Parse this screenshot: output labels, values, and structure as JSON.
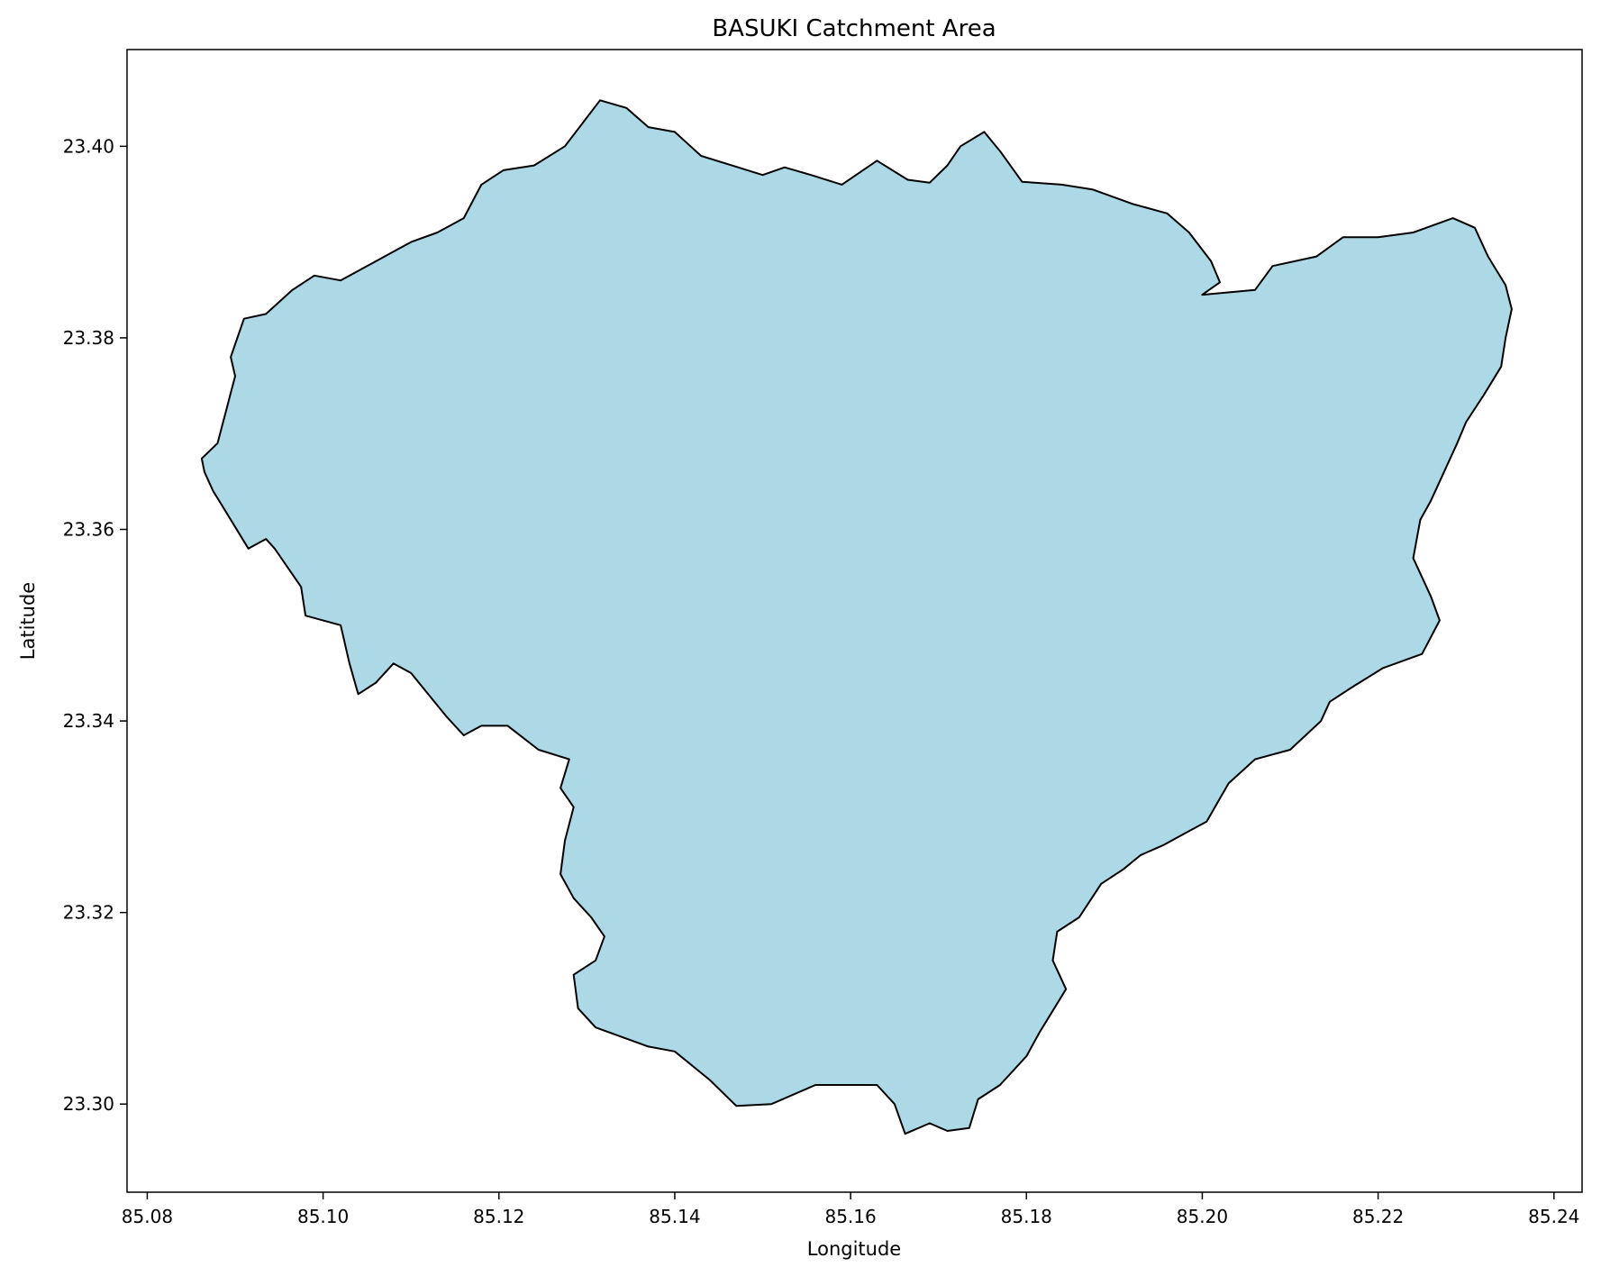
{
  "chart_data": {
    "type": "map",
    "title": "BASUKI Catchment Area",
    "xlabel": "Longitude",
    "ylabel": "Latitude",
    "xlim": [
      85.0777,
      85.2432
    ],
    "ylim": [
      23.2908,
      23.4101
    ],
    "x_ticks": [
      85.08,
      85.1,
      85.12,
      85.14,
      85.16,
      85.18,
      85.2,
      85.22,
      85.24
    ],
    "x_tick_labels": [
      "85.08",
      "85.10",
      "85.12",
      "85.14",
      "85.16",
      "85.18",
      "85.20",
      "85.22",
      "85.24"
    ],
    "y_ticks": [
      23.3,
      23.32,
      23.34,
      23.36,
      23.38,
      23.4
    ],
    "y_tick_labels": [
      "23.30",
      "23.32",
      "23.34",
      "23.36",
      "23.38",
      "23.40"
    ],
    "grid": false,
    "fill_color": "#add8e6",
    "edge_color": "#000000",
    "polygon": [
      [
        85.0862,
        23.3674
      ],
      [
        85.088,
        23.369
      ],
      [
        85.09,
        23.376
      ],
      [
        85.0895,
        23.378
      ],
      [
        85.091,
        23.382
      ],
      [
        85.0935,
        23.3825
      ],
      [
        85.0965,
        23.385
      ],
      [
        85.099,
        23.3865
      ],
      [
        85.102,
        23.386
      ],
      [
        85.105,
        23.3875
      ],
      [
        85.108,
        23.389
      ],
      [
        85.11,
        23.39
      ],
      [
        85.113,
        23.391
      ],
      [
        85.116,
        23.3925
      ],
      [
        85.118,
        23.396
      ],
      [
        85.1205,
        23.3975
      ],
      [
        85.124,
        23.398
      ],
      [
        85.1275,
        23.4
      ],
      [
        85.1315,
        23.4048
      ],
      [
        85.1345,
        23.404
      ],
      [
        85.137,
        23.402
      ],
      [
        85.14,
        23.4015
      ],
      [
        85.143,
        23.399
      ],
      [
        85.1465,
        23.398
      ],
      [
        85.15,
        23.397
      ],
      [
        85.1525,
        23.3978
      ],
      [
        85.1555,
        23.397
      ],
      [
        85.159,
        23.396
      ],
      [
        85.163,
        23.3985
      ],
      [
        85.1665,
        23.3965
      ],
      [
        85.169,
        23.3962
      ],
      [
        85.171,
        23.398
      ],
      [
        85.1725,
        23.4
      ],
      [
        85.1752,
        23.4015
      ],
      [
        85.177,
        23.3995
      ],
      [
        85.1795,
        23.3963
      ],
      [
        85.184,
        23.396
      ],
      [
        85.1875,
        23.3955
      ],
      [
        85.192,
        23.394
      ],
      [
        85.196,
        23.393
      ],
      [
        85.1985,
        23.391
      ],
      [
        85.201,
        23.388
      ],
      [
        85.202,
        23.3858
      ],
      [
        85.2,
        23.3845
      ],
      [
        85.206,
        23.385
      ],
      [
        85.208,
        23.3875
      ],
      [
        85.213,
        23.3885
      ],
      [
        85.216,
        23.3905
      ],
      [
        85.22,
        23.3905
      ],
      [
        85.224,
        23.391
      ],
      [
        85.2285,
        23.3925
      ],
      [
        85.231,
        23.3915
      ],
      [
        85.2325,
        23.3885
      ],
      [
        85.2345,
        23.3855
      ],
      [
        85.2352,
        23.383
      ],
      [
        85.2345,
        23.38
      ],
      [
        85.234,
        23.377
      ],
      [
        85.232,
        23.374
      ],
      [
        85.23,
        23.3712
      ],
      [
        85.229,
        23.369
      ],
      [
        85.227,
        23.365
      ],
      [
        85.226,
        23.363
      ],
      [
        85.2248,
        23.361
      ],
      [
        85.224,
        23.357
      ],
      [
        85.226,
        23.353
      ],
      [
        85.227,
        23.3505
      ],
      [
        85.225,
        23.347
      ],
      [
        85.2205,
        23.3455
      ],
      [
        85.217,
        23.3435
      ],
      [
        85.2145,
        23.342
      ],
      [
        85.2135,
        23.34
      ],
      [
        85.21,
        23.337
      ],
      [
        85.206,
        23.336
      ],
      [
        85.203,
        23.3335
      ],
      [
        85.2005,
        23.3295
      ],
      [
        85.1985,
        23.3285
      ],
      [
        85.1955,
        23.327
      ],
      [
        85.193,
        23.326
      ],
      [
        85.191,
        23.3245
      ],
      [
        85.1885,
        23.323
      ],
      [
        85.186,
        23.3195
      ],
      [
        85.1835,
        23.318
      ],
      [
        85.183,
        23.315
      ],
      [
        85.1845,
        23.312
      ],
      [
        85.1815,
        23.3075
      ],
      [
        85.18,
        23.305
      ],
      [
        85.177,
        23.302
      ],
      [
        85.1745,
        23.3005
      ],
      [
        85.1735,
        23.2975
      ],
      [
        85.171,
        23.2972
      ],
      [
        85.169,
        23.298
      ],
      [
        85.1662,
        23.2969
      ],
      [
        85.165,
        23.3
      ],
      [
        85.163,
        23.302
      ],
      [
        85.156,
        23.302
      ],
      [
        85.151,
        23.3
      ],
      [
        85.147,
        23.2998
      ],
      [
        85.144,
        23.3025
      ],
      [
        85.14,
        23.3055
      ],
      [
        85.137,
        23.306
      ],
      [
        85.134,
        23.307
      ],
      [
        85.131,
        23.308
      ],
      [
        85.129,
        23.31
      ],
      [
        85.1285,
        23.3135
      ],
      [
        85.131,
        23.315
      ],
      [
        85.132,
        23.3175
      ],
      [
        85.1305,
        23.3195
      ],
      [
        85.1285,
        23.3215
      ],
      [
        85.127,
        23.324
      ],
      [
        85.1275,
        23.3275
      ],
      [
        85.1285,
        23.331
      ],
      [
        85.127,
        23.333
      ],
      [
        85.128,
        23.336
      ],
      [
        85.1245,
        23.337
      ],
      [
        85.121,
        23.3395
      ],
      [
        85.118,
        23.3395
      ],
      [
        85.116,
        23.3385
      ],
      [
        85.114,
        23.3405
      ],
      [
        85.11,
        23.345
      ],
      [
        85.108,
        23.346
      ],
      [
        85.106,
        23.344
      ],
      [
        85.104,
        23.3428
      ],
      [
        85.103,
        23.346
      ],
      [
        85.102,
        23.35
      ],
      [
        85.098,
        23.351
      ],
      [
        85.0975,
        23.354
      ],
      [
        85.0945,
        23.358
      ],
      [
        85.0935,
        23.359
      ],
      [
        85.0915,
        23.358
      ],
      [
        85.0885,
        23.3625
      ],
      [
        85.0875,
        23.364
      ],
      [
        85.0865,
        23.366
      ],
      [
        85.0862,
        23.3674
      ]
    ]
  }
}
